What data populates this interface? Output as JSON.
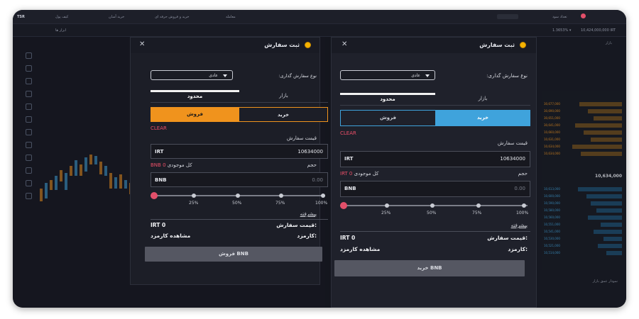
{
  "topbar": {
    "logo": "TSR",
    "nav": [
      "کیف پول",
      "خرید آسان",
      "خرید و فروش حرفه ای",
      "معامله",
      "تعداد سود"
    ],
    "ticker": "10,424,000,000 IRT",
    "change": "1.3653% ▾"
  },
  "subbar": {
    "crumb": "ابزار ها"
  },
  "orderbook": {
    "header": "بازار",
    "price": "10,634,000",
    "chart_label": "نمودار عمق بازار",
    "asks": [
      "30,677,000",
      "30,690,000",
      "30,651,000",
      "30,641,000",
      "10,660,000",
      "10,631,000",
      "10,634,000",
      "10,634,000"
    ],
    "bids": [
      "10,613,000",
      "10,600,000",
      "10,590,000",
      "10,580,000",
      "10,560,000",
      "10,551,000",
      "10,541,000",
      "10,530,000",
      "10,521,000",
      "10,514,000"
    ]
  },
  "front": {
    "title": "ثبت سفارش",
    "order_type_label": "نوع سفارش گذاری:",
    "order_type_value": "عادی",
    "tabs": {
      "market": "بازار",
      "limit": "محدود"
    },
    "buy": "خرید",
    "sell": "فروش",
    "clear": "CLEAR",
    "price_label": "قیمت سفارش",
    "price_currency": "IRT",
    "price_value": "10634000",
    "volume_label": "حجم",
    "balance_label": "کل موجودی",
    "balance_value": "IRT 0",
    "volume_currency": "BNB",
    "volume_value": "0.00",
    "slider_marks": [
      "25%",
      "50%",
      "75%",
      "100%"
    ],
    "advanced": "پیشرفته",
    "order_price_label": "قیمت سفارش:",
    "order_price_value": "IRT 0",
    "fee_label": "کارمزد:",
    "fee_value": "مشاهده کارمزد",
    "submit": "خرید BNB"
  },
  "back": {
    "title": "ثبت سفارش",
    "order_type_label": "نوع سفارش گذاری:",
    "order_type_value": "عادی",
    "tabs": {
      "market": "بازار",
      "limit": "محدود"
    },
    "buy": "خرید",
    "sell": "فروش",
    "clear": "CLEAR",
    "price_label": "قیمت سفارش",
    "price_currency": "IRT",
    "price_value": "10634000",
    "volume_label": "حجم",
    "balance_label": "کل موجودی",
    "balance_value": "BNB 0",
    "volume_currency": "BNB",
    "volume_value": "0.00",
    "slider_marks": [
      "25%",
      "50%",
      "75%",
      "100%"
    ],
    "advanced": "پیشرفته",
    "order_price_label": "قیمت سفارش:",
    "order_price_value": "IRT 0",
    "fee_label": "کارمزد:",
    "fee_value": "مشاهده کارمزد",
    "submit": "فروش BNB"
  },
  "colors": {
    "buy_active": "#3fa3dc",
    "sell_active": "#f0931d",
    "clear": "#ec4f68",
    "slider_knob": "#e24f6a",
    "submit_bg": "#555762"
  }
}
